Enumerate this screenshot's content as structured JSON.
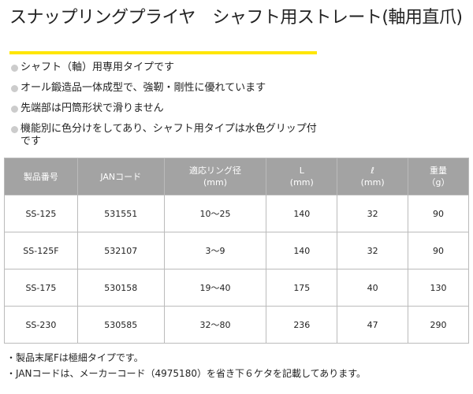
{
  "title": "スナップリングプライヤ　シャフト用ストレート(軸用直爪)",
  "accent_color": "#ffe600",
  "features": [
    "シャフト（軸）用専用タイプです",
    "オール鍛造品一体成型で、強靭・剛性に優れています",
    "先端部は円筒形状で滑りません",
    "機能別に色分けをしてあり、シャフト用タイプは水色グリップ付です"
  ],
  "table": {
    "headers": [
      [
        "製品番号",
        ""
      ],
      [
        "JANコード",
        ""
      ],
      [
        "適応リング径",
        "(mm)"
      ],
      [
        "L",
        "(mm)"
      ],
      [
        "ℓ",
        "(mm)"
      ],
      [
        "重量",
        "（g）"
      ]
    ],
    "rows": [
      [
        "SS-125",
        "531551",
        "10〜25",
        "140",
        "32",
        "90"
      ],
      [
        "SS-125F",
        "532107",
        "3〜9",
        "140",
        "32",
        "90"
      ],
      [
        "SS-175",
        "530158",
        "19〜40",
        "175",
        "40",
        "130"
      ],
      [
        "SS-230",
        "530585",
        "32〜80",
        "236",
        "47",
        "290"
      ]
    ]
  },
  "notes": [
    "・製品末尾Fは極細タイプです。",
    "・JANコードは、メーカーコード（4975180）を省き下６ケタを記載してあります。"
  ]
}
